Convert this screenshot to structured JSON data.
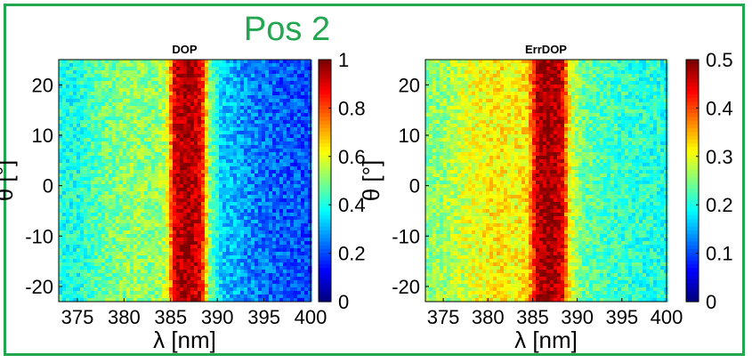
{
  "title": "Pos 2",
  "colors": {
    "frame": "#22a650",
    "title": "#22a650"
  },
  "chart_data": [
    {
      "type": "heatmap",
      "title": "DOP",
      "xlabel": "λ [nm]",
      "ylabel": "θ [°]",
      "xlim": [
        373,
        400
      ],
      "ylim": [
        -23,
        25
      ],
      "xticks": [
        375,
        380,
        385,
        390,
        395,
        400
      ],
      "yticks": [
        -20,
        -10,
        0,
        10,
        20
      ],
      "colorbar": {
        "range": [
          0,
          1
        ],
        "ticks": [
          "0",
          "0.2",
          "0.4",
          "0.6",
          "0.8",
          "1"
        ],
        "colormap": "jet"
      },
      "profile_along_x": {
        "x": [
          373,
          375,
          378,
          381,
          383,
          384.5,
          385.5,
          386.8,
          388.3,
          389.2,
          390.5,
          393,
          396,
          400
        ],
        "value": [
          0.4,
          0.4,
          0.48,
          0.52,
          0.5,
          0.55,
          0.93,
          0.97,
          0.9,
          0.5,
          0.33,
          0.27,
          0.22,
          0.2
        ]
      }
    },
    {
      "type": "heatmap",
      "title": "ErrDOP",
      "xlabel": "λ [nm]",
      "ylabel": "θ [°]",
      "xlim": [
        373,
        400
      ],
      "ylim": [
        -23,
        25
      ],
      "xticks": [
        375,
        380,
        385,
        390,
        395,
        400
      ],
      "yticks": [
        -20,
        -10,
        0,
        10,
        20
      ],
      "colorbar": {
        "range": [
          0,
          0.5
        ],
        "ticks": [
          "0",
          "0.1",
          "0.2",
          "0.3",
          "0.4",
          "0.5"
        ],
        "colormap": "jet"
      },
      "profile_along_x": {
        "x": [
          373,
          375,
          378,
          381,
          383,
          384.5,
          385.5,
          386.8,
          388.3,
          389.2,
          390.5,
          393,
          396,
          400
        ],
        "value": [
          0.25,
          0.26,
          0.3,
          0.32,
          0.31,
          0.33,
          0.47,
          0.49,
          0.46,
          0.3,
          0.24,
          0.22,
          0.21,
          0.2
        ]
      }
    }
  ]
}
